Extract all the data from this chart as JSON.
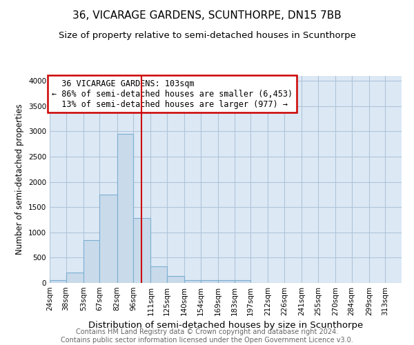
{
  "title": "36, VICARAGE GARDENS, SCUNTHORPE, DN15 7BB",
  "subtitle": "Size of property relative to semi-detached houses in Scunthorpe",
  "xlabel": "Distribution of semi-detached houses by size in Scunthorpe",
  "ylabel": "Number of semi-detached properties",
  "footer1": "Contains HM Land Registry data © Crown copyright and database right 2024.",
  "footer2": "Contains public sector information licensed under the Open Government Licence v3.0.",
  "bin_labels": [
    "24sqm",
    "38sqm",
    "53sqm",
    "67sqm",
    "82sqm",
    "96sqm",
    "111sqm",
    "125sqm",
    "140sqm",
    "154sqm",
    "169sqm",
    "183sqm",
    "197sqm",
    "212sqm",
    "226sqm",
    "241sqm",
    "255sqm",
    "270sqm",
    "284sqm",
    "299sqm",
    "313sqm"
  ],
  "bin_edges": [
    24,
    38,
    53,
    67,
    82,
    96,
    111,
    125,
    140,
    154,
    169,
    183,
    197,
    212,
    226,
    241,
    255,
    270,
    284,
    299,
    313,
    327
  ],
  "bar_values": [
    50,
    200,
    850,
    1750,
    2950,
    1280,
    330,
    130,
    60,
    50,
    50,
    50,
    0,
    0,
    0,
    0,
    0,
    0,
    0,
    0,
    0
  ],
  "bar_color": "#c9daea",
  "bar_edge_color": "#7bafd4",
  "property_size": 103,
  "property_label": "36 VICARAGE GARDENS: 103sqm",
  "pct_smaller": 86,
  "pct_larger": 13,
  "n_smaller": 6453,
  "n_larger": 977,
  "vline_color": "#cc0000",
  "annotation_box_edge": "#cc0000",
  "ylim": [
    0,
    4100
  ],
  "yticks": [
    0,
    500,
    1000,
    1500,
    2000,
    2500,
    3000,
    3500,
    4000
  ],
  "grid_color": "#b0c4d8",
  "bg_color": "#dce9f5",
  "title_fontsize": 11,
  "subtitle_fontsize": 9.5,
  "xlabel_fontsize": 9.5,
  "ylabel_fontsize": 8.5,
  "tick_fontsize": 7.5,
  "annot_fontsize": 8.5,
  "footer_fontsize": 7
}
